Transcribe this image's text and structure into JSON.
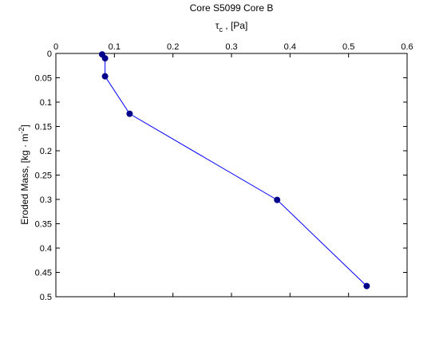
{
  "chart_data": {
    "type": "line",
    "title": "Core S5099 Core B",
    "xlabel": {
      "symbol": "τ",
      "subscript": "c",
      "rest": " , [Pa]"
    },
    "ylabel": {
      "prefix": "Eroded Mass, [kg · m",
      "superscript": "-2",
      "suffix": "]"
    },
    "x_axis_position": "top",
    "y_axis_reversed": true,
    "xlim": [
      0,
      0.6
    ],
    "ylim": [
      0,
      0.5
    ],
    "x_ticks": [
      "0",
      "0.1",
      "0.2",
      "0.3",
      "0.4",
      "0.5",
      "0.6"
    ],
    "y_ticks": [
      "0",
      "0.05",
      "0.1",
      "0.15",
      "0.2",
      "0.25",
      "0.3",
      "0.35",
      "0.4",
      "0.45",
      "0.5"
    ],
    "grid": false,
    "series": [
      {
        "color": "#0000ff",
        "marker_color": "#00008b",
        "x": [
          0.079,
          0.084,
          0.084,
          0.126,
          0.378,
          0.531
        ],
        "y": [
          0.002,
          0.01,
          0.047,
          0.124,
          0.301,
          0.478
        ]
      }
    ]
  }
}
